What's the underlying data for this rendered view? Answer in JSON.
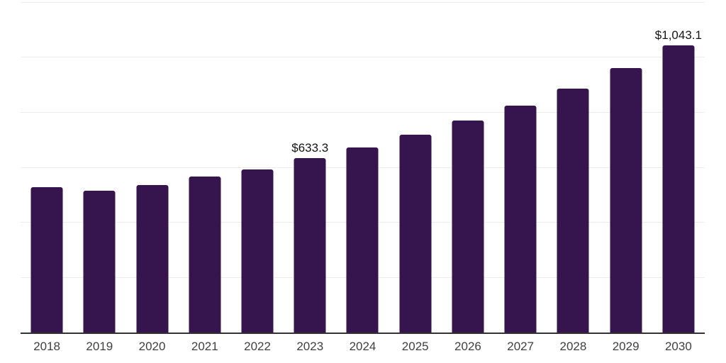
{
  "chart_data": {
    "type": "bar",
    "title": "",
    "xlabel": "",
    "ylabel": "",
    "categories": [
      "2018",
      "2019",
      "2020",
      "2021",
      "2022",
      "2023",
      "2024",
      "2025",
      "2026",
      "2027",
      "2028",
      "2029",
      "2030"
    ],
    "values": [
      528,
      515,
      536,
      566,
      593,
      633.3,
      673,
      718,
      770,
      825,
      887,
      961,
      1043.1
    ],
    "bar_labels": [
      "",
      "",
      "",
      "",
      "",
      "$633.3",
      "",
      "",
      "",
      "",
      "",
      "",
      "$1,043.1"
    ],
    "ylim": [
      0,
      1200
    ],
    "gridline_step": 200,
    "grid": true,
    "legend": false,
    "y_axis_tick_labels_visible": false
  },
  "colors": {
    "bar": "#36154e",
    "axis_line": "#333333",
    "gridline": "#ececec",
    "tick_label": "#404040",
    "value_label": "#141414",
    "background": "#ffffff"
  }
}
